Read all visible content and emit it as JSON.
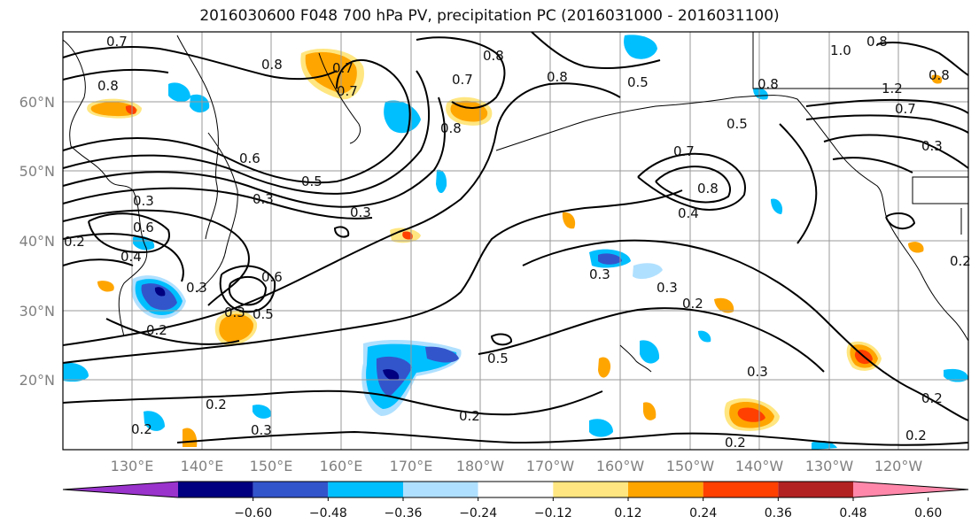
{
  "title": "2016030600 F048 700 hPa PV, precipitation PC (2016031000 - 2016031100)",
  "map": {
    "lat_labels": [
      "60°N",
      "50°N",
      "40°N",
      "30°N",
      "20°N"
    ],
    "lon_labels": [
      "130°E",
      "140°E",
      "150°E",
      "160°E",
      "170°E",
      "180°W",
      "170°W",
      "160°W",
      "150°W",
      "140°W",
      "130°W",
      "120°W"
    ],
    "contour_labels": [
      "0.7",
      "0.8",
      "0.8",
      "0.7",
      "0.8",
      "0.7",
      "0.8",
      "0.7",
      "0.5",
      "0.8",
      "0.5",
      "1.0",
      "0.8",
      "0.8",
      "1.2",
      "0.7",
      "0.6",
      "0.5",
      "0.3",
      "0.3",
      "0.3",
      "0.6",
      "0.4",
      "0.2",
      "0.3",
      "0.6",
      "0.3",
      "0.3",
      "0.5",
      "0.2",
      "0.3",
      "0.5",
      "0.7",
      "0.8",
      "0.4",
      "0.3",
      "0.2",
      "0.3",
      "0.2",
      "0.2",
      "0.3",
      "0.2",
      "0.2",
      "0.2",
      "0.2",
      "0.2",
      "0.8"
    ],
    "colors": {
      "coast": "#000000",
      "grid": "#9a9a9a",
      "contour": "#000000"
    }
  },
  "colorbar": {
    "ticks": [
      "−0.60",
      "−0.48",
      "−0.36",
      "−0.24",
      "−0.12",
      "0.12",
      "0.24",
      "0.36",
      "0.48",
      "0.60"
    ],
    "colors": [
      "#9933cc",
      "#000080",
      "#3355cc",
      "#00bfff",
      "#b0e0ff",
      "#ffffff",
      "#ffe680",
      "#ffa500",
      "#ff4000",
      "#b22222",
      "#ff88aa"
    ]
  }
}
